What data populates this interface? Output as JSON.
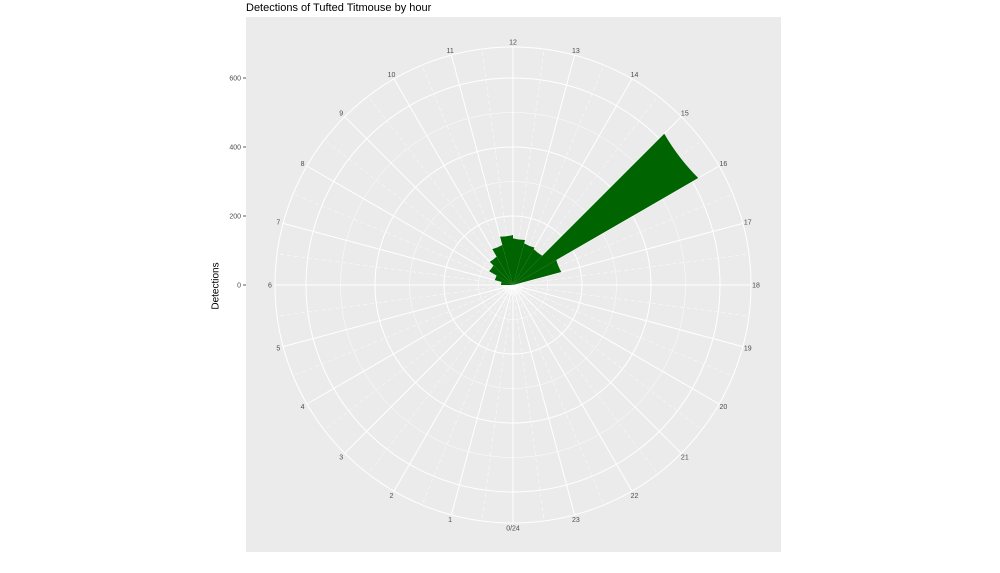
{
  "chart_data": {
    "type": "bar",
    "polar": true,
    "title": "Detections of Tufted Titmouse by hour",
    "xlabel": "",
    "ylabel": "Detections",
    "ylim": [
      0,
      700
    ],
    "y_ticks": [
      0,
      200,
      400,
      600
    ],
    "x_tick_labels": [
      "0/24",
      "1",
      "2",
      "3",
      "4",
      "5",
      "6",
      "7",
      "8",
      "9",
      "10",
      "11",
      "12",
      "13",
      "14",
      "15",
      "16",
      "17",
      "18",
      "19",
      "20",
      "21",
      "22",
      "23"
    ],
    "x_tick_positions": [
      0,
      1,
      2,
      3,
      4,
      5,
      6,
      7,
      8,
      9,
      10,
      11,
      12,
      13,
      14,
      15,
      16,
      17,
      18,
      19,
      20,
      21,
      22,
      23
    ],
    "x": [
      6.5,
      7.5,
      8.5,
      9.5,
      10.5,
      11.5,
      12.5,
      13.5,
      14.5,
      15.5,
      16.5
    ],
    "values": [
      35,
      55,
      80,
      95,
      120,
      145,
      135,
      125,
      120,
      620,
      145
    ],
    "bar_color": "#006400",
    "panel_color": "#ebebeb",
    "grid_color": "#ffffff",
    "grid": true,
    "legend": "none"
  }
}
